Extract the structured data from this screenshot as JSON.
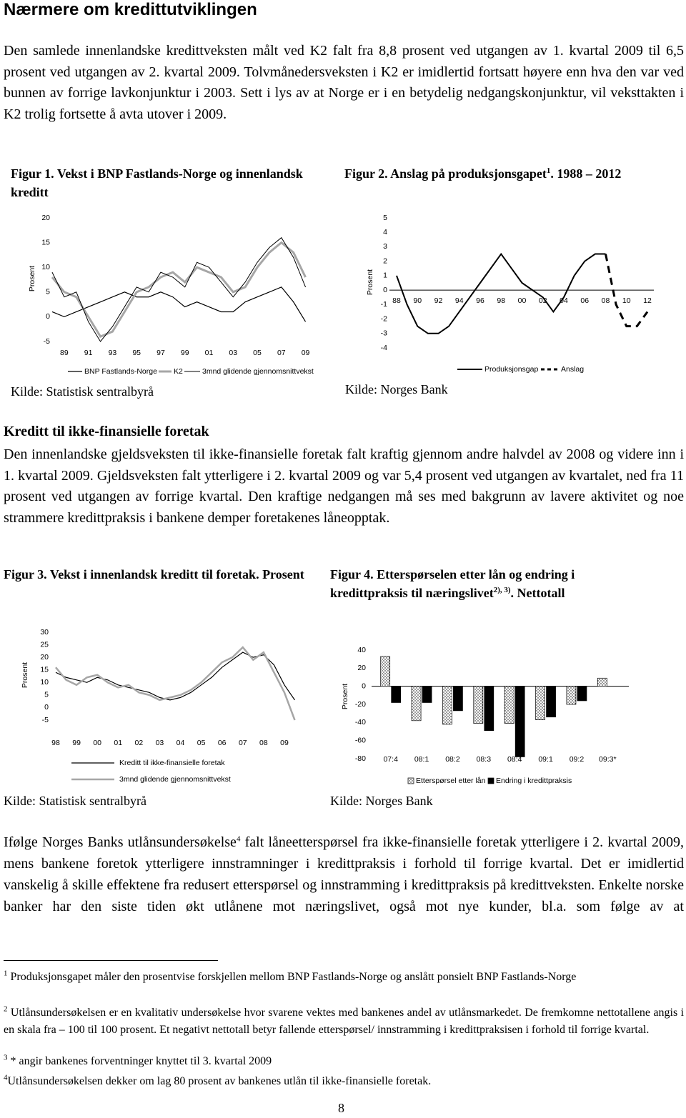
{
  "header": {
    "title": "Nærmere om kredittutviklingen"
  },
  "intro": "Den samlede innenlandske kredittveksten målt ved K2 falt fra 8,8 prosent ved utgangen av 1. kvartal 2009 til 6,5 prosent ved utgangen av 2. kvartal 2009. Tolvmånedersveksten i K2 er imidlertid fortsatt høyere enn hva den var ved bunnen av forrige lavkonjunktur i 2003. Sett i lys av at Norge er i en betydelig nedgangskonjunktur, vil veksttakten i K2 trolig fortsette å avta utover i 2009.",
  "figures": [
    {
      "caption": {
        "text": "Figur 1. Vekst i BNP Fastlands-Norge og innenlandsk kreditt"
      },
      "source": "Kilde: Statistisk sentralbyrå"
    },
    {
      "caption": {
        "text": "Figur 2. Anslag på produksjonsgapet",
        "sup": "1",
        "tail": ". 1988 – 2012"
      },
      "source": "Kilde: Norges Bank"
    },
    {
      "caption": {
        "text": "Figur 3. Vekst i innenlandsk kreditt til foretak. Prosent"
      },
      "source": "Kilde: Statistisk sentralbyrå"
    },
    {
      "caption": {
        "text": "Figur 4. Etterspørselen etter lån og endring i kredittpraksis til næringslivet",
        "sup": "2), 3)",
        "tail": ". Nettotall"
      },
      "source": "Kilde: Norges Bank"
    }
  ],
  "section": {
    "heading": "Kreditt til ikke-finansielle foretak",
    "text": "Den innenlandske gjeldsveksten til ikke-finansielle foretak falt kraftig gjennom andre halvdel av 2008 og videre inn i 1. kvartal 2009. Gjeldsveksten falt ytterligere i 2. kvartal 2009 og var 5,4 prosent ved utgangen av kvartalet, ned fra 11 prosent ved utgangen av forrige kvartal. Den kraftige nedgangen må ses med bakgrunn av lavere aktivitet og noe strammere kredittpraksis i bankene demper foretakenes låneopptak."
  },
  "closing": {
    "text": "Ifølge Norges Banks utlånsundersøkelse",
    "sup": "4",
    "tail": "falt låneetterspørsel fra ikke-finansielle foretak ytterligere i 2. kvartal 2009, mens bankene foretok ytterligere innstramninger i kredittpraksis i forhold til forrige kvartal. Det er imidlertid vanskelig å skille effektene fra redusert etterspørsel og innstramming i kredittpraksis på kredittveksten. Enkelte norske banker har den siste tiden økt utlånene mot næringslivet, også mot nye kunder, bl.a. som følge av at"
  },
  "footnotes": [
    {
      "mark": "1",
      "text": "Produksjonsgapet måler den prosentvise forskjellen mellom BNP Fastlands-Norge og anslått ponsielt BNP Fastlands-Norge"
    },
    {
      "mark": "2",
      "text": "Utlånsundersøkelsen er en kvalitativ undersøkelse hvor svarene vektes med bankenes andel av utlånsmarkedet. De fremkomne nettotallene angis i en skala fra – 100 til 100 prosent. Et negativt nettotall betyr fallende etterspørsel/ innstramming i kredittpraksisen i forhold til forrige kvartal."
    },
    {
      "mark": "3",
      "text": "* angir bankenes forventninger knyttet til 3. kvartal 2009"
    },
    {
      "mark": "4",
      "text": "Utlånsundersøkelsen dekker om lag 80 prosent av bankenes utlån til ikke-finansielle foretak."
    }
  ],
  "page_number": "8",
  "chart_data": [
    {
      "type": "line",
      "ylabel": "Prosent",
      "xlim": [
        1988,
        2009.5
      ],
      "ylim": [
        -5,
        20
      ],
      "yticks": [
        20,
        15,
        10,
        5,
        0,
        -5
      ],
      "xticks": [
        {
          "value": 1989,
          "label": "89"
        },
        {
          "value": 1991,
          "label": "91"
        },
        {
          "value": 1993,
          "label": "93"
        },
        {
          "value": 1995,
          "label": "95"
        },
        {
          "value": 1997,
          "label": "97"
        },
        {
          "value": 1999,
          "label": "99"
        },
        {
          "value": 2001,
          "label": "01"
        },
        {
          "value": 2003,
          "label": "03"
        },
        {
          "value": 2005,
          "label": "05"
        },
        {
          "value": 2007,
          "label": "07"
        },
        {
          "value": 2009,
          "label": "09"
        }
      ],
      "x": [
        1988,
        1989,
        1990,
        1991,
        1992,
        1993,
        1994,
        1995,
        1996,
        1997,
        1998,
        1999,
        2000,
        2001,
        2002,
        2003,
        2004,
        2005,
        2006,
        2007,
        2008,
        2009
      ],
      "series": [
        {
          "name": "BNP Fastlands-Norge",
          "color": "#000000",
          "width": 1.2,
          "values": [
            1,
            0,
            1,
            2,
            3,
            4,
            5,
            4,
            4,
            5,
            4,
            2,
            3,
            2,
            1,
            1,
            3,
            4,
            5,
            6,
            3,
            -1
          ]
        },
        {
          "name": "K2",
          "color": "#a6a6a6",
          "width": 3,
          "values": [
            8,
            5,
            4,
            0,
            -4,
            -3,
            1,
            5,
            6,
            8,
            9,
            7,
            10,
            9,
            8,
            5,
            6,
            10,
            13,
            15,
            13,
            8
          ]
        },
        {
          "name": "3mnd glidende gjennomsnittvekst",
          "color": "#000000",
          "width": 1,
          "values": [
            9,
            4,
            5,
            -1,
            -5,
            -2,
            2,
            6,
            5,
            9,
            8,
            6,
            11,
            10,
            7,
            4,
            7,
            11,
            14,
            16,
            12,
            6
          ]
        }
      ]
    },
    {
      "type": "line",
      "ylabel": "Prosent",
      "zero_line": true,
      "xlim": [
        1988,
        2012
      ],
      "ylim": [
        -4,
        5
      ],
      "yticks": [
        5,
        4,
        3,
        2,
        1,
        0,
        -1,
        -2,
        -3,
        -4
      ],
      "xticks": [
        {
          "value": 1988,
          "label": "88"
        },
        {
          "value": 1990,
          "label": "90"
        },
        {
          "value": 1992,
          "label": "92"
        },
        {
          "value": 1994,
          "label": "94"
        },
        {
          "value": 1996,
          "label": "96"
        },
        {
          "value": 1998,
          "label": "98"
        },
        {
          "value": 2000,
          "label": "00"
        },
        {
          "value": 2002,
          "label": "02"
        },
        {
          "value": 2004,
          "label": "04"
        },
        {
          "value": 2006,
          "label": "06"
        },
        {
          "value": 2008,
          "label": "08"
        },
        {
          "value": 2010,
          "label": "10"
        },
        {
          "value": 2012,
          "label": "12"
        }
      ],
      "x": [
        1988,
        1989,
        1990,
        1991,
        1992,
        1993,
        1994,
        1995,
        1996,
        1997,
        1998,
        1999,
        2000,
        2001,
        2002,
        2003,
        2004,
        2005,
        2006,
        2007,
        2008,
        2009,
        2010,
        2011,
        2012
      ],
      "series": [
        {
          "name": "Produksjonsgap",
          "color": "#000000",
          "width": 2,
          "values": [
            1,
            -1,
            -2.5,
            -3,
            -3,
            -2.5,
            -1.5,
            -0.5,
            0.5,
            1.5,
            2.5,
            1.5,
            0.5,
            0,
            -0.5,
            -1.5,
            -0.5,
            1,
            2,
            2.5,
            2.5,
            null,
            null,
            null,
            null
          ]
        },
        {
          "name": "Anslag",
          "color": "#000000",
          "width": 3,
          "dash": true,
          "values": [
            null,
            null,
            null,
            null,
            null,
            null,
            null,
            null,
            null,
            null,
            null,
            null,
            null,
            null,
            null,
            null,
            null,
            null,
            null,
            null,
            2.5,
            -1,
            -2.5,
            -2.5,
            -1.5
          ]
        }
      ]
    },
    {
      "type": "line",
      "ylabel": "Prosent",
      "xlim": [
        1998,
        2009.5
      ],
      "ylim": [
        -5,
        30
      ],
      "yticks": [
        30,
        25,
        20,
        15,
        10,
        5,
        0,
        -5
      ],
      "xticks": [
        {
          "value": 1998,
          "label": "98"
        },
        {
          "value": 1999,
          "label": "99"
        },
        {
          "value": 2000,
          "label": "00"
        },
        {
          "value": 2001,
          "label": "01"
        },
        {
          "value": 2002,
          "label": "02"
        },
        {
          "value": 2003,
          "label": "03"
        },
        {
          "value": 2004,
          "label": "04"
        },
        {
          "value": 2005,
          "label": "05"
        },
        {
          "value": 2006,
          "label": "06"
        },
        {
          "value": 2007,
          "label": "07"
        },
        {
          "value": 2008,
          "label": "08"
        },
        {
          "value": 2009,
          "label": "09"
        }
      ],
      "x": [
        1998,
        1998.5,
        1999,
        1999.5,
        2000,
        2000.5,
        2001,
        2001.5,
        2002,
        2002.5,
        2003,
        2003.5,
        2004,
        2004.5,
        2005,
        2005.5,
        2006,
        2006.5,
        2007,
        2007.5,
        2008,
        2008.5,
        2009,
        2009.5
      ],
      "series": [
        {
          "name": "Kreditt til ikke-finansielle foretak",
          "color": "#000000",
          "width": 1.2,
          "values": [
            14,
            12,
            11,
            10,
            12,
            11,
            9,
            8,
            7,
            6,
            4,
            3,
            4,
            6,
            9,
            12,
            16,
            19,
            22,
            20,
            21,
            17,
            9,
            3
          ]
        },
        {
          "name": "3mnd glidende gjennomsnittvekst",
          "color": "#a6a6a6",
          "width": 2.5,
          "values": [
            16,
            11,
            9,
            12,
            13,
            10,
            8,
            9,
            6,
            5,
            3,
            4,
            5,
            7,
            10,
            14,
            18,
            20,
            24,
            19,
            22,
            14,
            6,
            -5
          ]
        }
      ]
    },
    {
      "type": "bar",
      "ylabel": "Prosent",
      "zero_line": true,
      "ylim": [
        -80,
        40
      ],
      "yticks": [
        40,
        20,
        0,
        -20,
        -40,
        -60,
        -80
      ],
      "categories": [
        "07:4",
        "08:1",
        "08:2",
        "08:3",
        "08:4",
        "09:1",
        "09:2",
        "09:3*"
      ],
      "series": [
        {
          "name": "Etterspørsel etter lån",
          "color": "#000000",
          "pattern": "dots",
          "values": [
            33,
            -38,
            -42,
            -41,
            -41,
            -37,
            -20,
            9
          ]
        },
        {
          "name": "Endring i kredittpraksis",
          "color": "#000000",
          "values": [
            -18,
            -18,
            -27,
            -49,
            -78,
            -34,
            -16,
            0
          ]
        }
      ]
    }
  ]
}
